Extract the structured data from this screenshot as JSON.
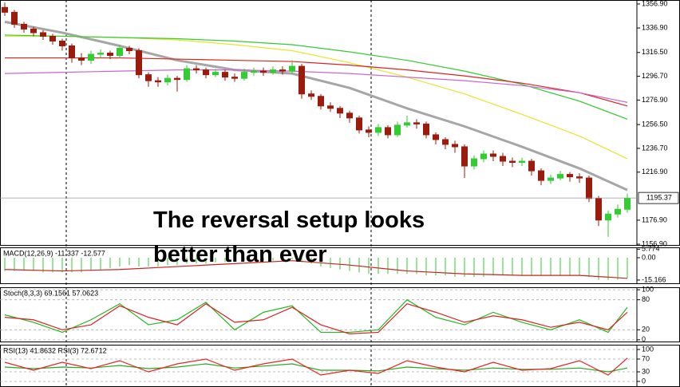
{
  "chart_data": [
    {
      "type": "candlestick",
      "open": [
        1354,
        1350,
        1340,
        1336,
        1333,
        1330,
        1326,
        1322,
        1312,
        1310,
        1315,
        1316,
        1314,
        1320,
        1318,
        1298,
        1293,
        1292,
        1295,
        1294,
        1303,
        1302,
        1298,
        1300,
        1296,
        1295,
        1300,
        1301,
        1300,
        1302,
        1301,
        1305,
        1282,
        1280,
        1272,
        1270,
        1266,
        1262,
        1252,
        1250,
        1254,
        1248,
        1256,
        1258,
        1257,
        1248,
        1244,
        1240,
        1238,
        1222,
        1228,
        1232,
        1230,
        1226,
        1225,
        1226,
        1218,
        1210,
        1212,
        1215,
        1213,
        1212,
        1195,
        1177,
        1182,
        1186
      ],
      "high": [
        1358,
        1352,
        1342,
        1338,
        1335,
        1332,
        1328,
        1324,
        1316,
        1318,
        1319,
        1318,
        1323,
        1322,
        1320,
        1300,
        1296,
        1298,
        1297,
        1306,
        1306,
        1304,
        1303,
        1302,
        1299,
        1303,
        1304,
        1304,
        1305,
        1305,
        1310,
        1307,
        1285,
        1282,
        1275,
        1272,
        1268,
        1264,
        1255,
        1257,
        1256,
        1259,
        1264,
        1261,
        1259,
        1250,
        1246,
        1243,
        1240,
        1231,
        1235,
        1235,
        1233,
        1229,
        1229,
        1228,
        1220,
        1215,
        1218,
        1217,
        1216,
        1214,
        1197,
        1185,
        1190,
        1199
      ],
      "low": [
        1347,
        1337,
        1333,
        1330,
        1327,
        1323,
        1318,
        1308,
        1306,
        1307,
        1312,
        1311,
        1312,
        1315,
        1295,
        1288,
        1288,
        1289,
        1284,
        1292,
        1299,
        1295,
        1296,
        1293,
        1292,
        1293,
        1297,
        1297,
        1298,
        1298,
        1299,
        1278,
        1277,
        1269,
        1267,
        1262,
        1258,
        1249,
        1246,
        1247,
        1245,
        1246,
        1254,
        1253,
        1245,
        1240,
        1236,
        1233,
        1212,
        1219,
        1225,
        1226,
        1222,
        1221,
        1222,
        1214,
        1206,
        1207,
        1210,
        1209,
        1208,
        1192,
        1172,
        1163,
        1179,
        1183
      ],
      "close": [
        1350,
        1340,
        1336,
        1333,
        1330,
        1326,
        1322,
        1312,
        1310,
        1315,
        1316,
        1314,
        1320,
        1318,
        1298,
        1293,
        1292,
        1295,
        1294,
        1303,
        1302,
        1298,
        1300,
        1296,
        1295,
        1300,
        1301,
        1300,
        1302,
        1301,
        1305,
        1282,
        1280,
        1272,
        1270,
        1266,
        1262,
        1252,
        1250,
        1254,
        1248,
        1256,
        1258,
        1257,
        1248,
        1244,
        1240,
        1238,
        1222,
        1228,
        1232,
        1230,
        1226,
        1225,
        1226,
        1218,
        1210,
        1212,
        1215,
        1213,
        1212,
        1195,
        1177,
        1182,
        1186,
        1195
      ],
      "up_color": "#33cc33",
      "down_color": "#9b1c0c",
      "series": [
        {
          "color": "#a6a6a6",
          "x": [
            0,
            6,
            12,
            18,
            24,
            30,
            36,
            42,
            48,
            54,
            60,
            65
          ],
          "values": [
            1342,
            1333,
            1322,
            1310,
            1302,
            1299,
            1287,
            1270,
            1255,
            1238,
            1220,
            1202
          ]
        },
        {
          "color": "#e6e62e",
          "x": [
            0,
            6,
            12,
            18,
            24,
            30,
            36,
            42,
            48,
            54,
            60,
            65
          ],
          "values": [
            1330,
            1330,
            1329,
            1327,
            1323,
            1318,
            1308,
            1296,
            1282,
            1265,
            1247,
            1228
          ]
        },
        {
          "color": "#33cc33",
          "x": [
            0,
            6,
            12,
            18,
            24,
            30,
            36,
            42,
            48,
            54,
            60,
            65
          ],
          "values": [
            1331,
            1330,
            1329,
            1328,
            1326,
            1323,
            1317,
            1310,
            1301,
            1290,
            1276,
            1261
          ]
        },
        {
          "color": "#dd2222",
          "x": [
            0,
            6,
            12,
            18,
            24,
            30,
            36,
            42,
            48,
            54,
            60,
            65
          ],
          "values": [
            1312,
            1312,
            1312,
            1311,
            1310,
            1309,
            1306,
            1302,
            1297,
            1291,
            1283,
            1272
          ]
        },
        {
          "color": "#cc66cc",
          "x": [
            0,
            6,
            12,
            18,
            24,
            30,
            36,
            42,
            48,
            54,
            60,
            65
          ],
          "values": [
            1299,
            1300,
            1301,
            1302,
            1302,
            1301,
            1299,
            1296,
            1293,
            1289,
            1283,
            1275
          ]
        }
      ],
      "ylim": [
        1155.6,
        1360.2
      ],
      "yticks": [
        {
          "value": 1356.9,
          "label": "1356.90"
        },
        {
          "value": 1336.9,
          "label": "1336.90"
        },
        {
          "value": 1316.5,
          "label": "1316.50"
        },
        {
          "value": 1296.7,
          "label": "1296.70"
        },
        {
          "value": 1276.9,
          "label": "1276.90"
        },
        {
          "value": 1256.5,
          "label": "1256.50"
        },
        {
          "value": 1236.7,
          "label": "1236.70"
        },
        {
          "value": 1216.9,
          "label": "1216.90"
        },
        {
          "value": 1176.9,
          "label": "1176.90"
        },
        {
          "value": 1156.9,
          "label": "1156.90"
        }
      ],
      "current_price": 1195.37,
      "annotation": [
        "The reversal setup looks",
        "better than ever"
      ],
      "annotation_color": "#e8262b",
      "grid": false
    },
    {
      "type": "bar",
      "title": "MACD(12,26,9) -11.337 -12.577",
      "values": [
        -9,
        -9,
        -9,
        -9,
        -10,
        -10,
        -10,
        -10,
        -10,
        -9,
        -8,
        -7,
        -6,
        -5,
        -6,
        -6,
        -6,
        -5,
        -5,
        -4,
        -4,
        -4,
        -3,
        -3,
        -3,
        -2,
        -2,
        -2,
        -2,
        -1,
        -1,
        -3,
        -4,
        -6,
        -7,
        -8,
        -9,
        -10,
        -11,
        -11,
        -11,
        -11,
        -11,
        -11,
        -12,
        -12,
        -12,
        -13,
        -13,
        -13,
        -13,
        -12,
        -12,
        -12,
        -12,
        -12,
        -12,
        -12,
        -12,
        -12,
        -12,
        -13,
        -15,
        -15,
        -15,
        -14
      ],
      "color": "#33cc33",
      "series": [
        {
          "color": "#cc2222",
          "x": [
            0,
            6,
            12,
            18,
            24,
            30,
            36,
            42,
            48,
            54,
            60,
            65
          ],
          "values": [
            -8,
            -9,
            -8,
            -6,
            -4,
            -2,
            -5,
            -9,
            -11,
            -12,
            -12,
            -14
          ]
        }
      ],
      "ylim": [
        -17.9,
        7.04
      ],
      "yticks": [
        5.774,
        {
          "value": 0,
          "label": "0.00"
        },
        -15.166
      ],
      "grid": false
    },
    {
      "type": "line",
      "title": "Stoch(8,3,3) 69.1561 57.0623",
      "series": [
        {
          "color": "#22bb22",
          "x": [
            0,
            3,
            6,
            9,
            12,
            15,
            18,
            21,
            24,
            27,
            30,
            33,
            36,
            39,
            42,
            45,
            48,
            51,
            54,
            57,
            60,
            63,
            65
          ],
          "values": [
            50,
            35,
            15,
            40,
            72,
            30,
            40,
            75,
            20,
            55,
            68,
            15,
            15,
            20,
            80,
            45,
            30,
            55,
            35,
            20,
            40,
            15,
            65
          ]
        },
        {
          "color": "#dd2222",
          "x": [
            0,
            3,
            6,
            9,
            12,
            15,
            18,
            21,
            24,
            27,
            30,
            33,
            36,
            39,
            42,
            45,
            48,
            51,
            54,
            57,
            60,
            63,
            65
          ],
          "values": [
            45,
            40,
            20,
            30,
            68,
            45,
            30,
            72,
            35,
            40,
            65,
            30,
            12,
            15,
            72,
            55,
            35,
            48,
            40,
            25,
            35,
            20,
            55
          ]
        }
      ],
      "ylim": [
        -5,
        105
      ],
      "yticks": [
        100,
        80,
        20,
        0
      ],
      "grid": true
    },
    {
      "type": "line",
      "title": "RSI(13) 41.8632 RSI(3) 72.6712",
      "series": [
        {
          "color": "#22aa22",
          "x": [
            0,
            3,
            6,
            9,
            12,
            15,
            18,
            21,
            24,
            27,
            30,
            33,
            36,
            39,
            42,
            45,
            48,
            51,
            54,
            57,
            60,
            63,
            65
          ],
          "values": [
            45,
            40,
            45,
            42,
            50,
            40,
            45,
            55,
            42,
            48,
            55,
            35,
            35,
            33,
            45,
            40,
            35,
            42,
            38,
            38,
            42,
            30,
            42
          ]
        },
        {
          "color": "#ee2222",
          "x": [
            0,
            3,
            6,
            9,
            12,
            15,
            18,
            21,
            24,
            27,
            30,
            33,
            36,
            39,
            42,
            45,
            48,
            51,
            54,
            57,
            60,
            63,
            65
          ],
          "values": [
            60,
            35,
            60,
            40,
            65,
            30,
            55,
            70,
            35,
            55,
            70,
            20,
            35,
            25,
            65,
            45,
            30,
            60,
            35,
            40,
            65,
            20,
            73
          ]
        }
      ],
      "ylim": [
        -17.5,
        115
      ],
      "yticks": [
        100,
        70,
        30,
        0
      ],
      "grid": true
    }
  ]
}
